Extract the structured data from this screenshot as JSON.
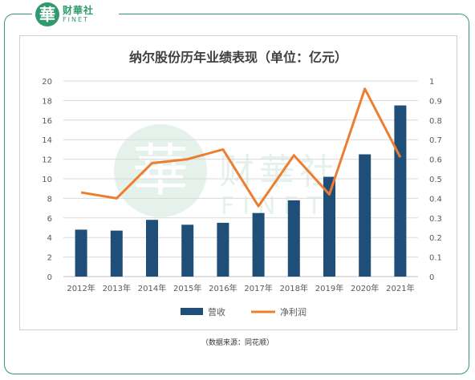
{
  "brand": {
    "mark": "華",
    "name_cn": "财華社",
    "name_en": "FINET"
  },
  "source": "（数据来源：同花顺）",
  "colors": {
    "bar": "#1f4e79",
    "line": "#ed7d31",
    "brand": "#2f9a6d",
    "grid": "#d9d9d9"
  },
  "chart_data": {
    "type": "bar",
    "title": "纳尔股份历年业绩表现（单位：亿元）",
    "categories": [
      "2012年",
      "2013年",
      "2014年",
      "2015年",
      "2016年",
      "2017年",
      "2018年",
      "2019年",
      "2020年",
      "2021年"
    ],
    "series": [
      {
        "name": "营收",
        "type": "bar",
        "axis": "left",
        "values": [
          4.8,
          4.7,
          5.8,
          5.3,
          5.5,
          6.5,
          7.8,
          10.2,
          12.5,
          17.5
        ]
      },
      {
        "name": "净利润",
        "type": "line",
        "axis": "right",
        "values": [
          0.43,
          0.4,
          0.58,
          0.6,
          0.65,
          0.36,
          0.62,
          0.42,
          0.96,
          0.61
        ]
      }
    ],
    "ylim_left": [
      0,
      20
    ],
    "yticks_left": [
      "0",
      "2",
      "4",
      "6",
      "8",
      "10",
      "12",
      "14",
      "16",
      "18",
      "20"
    ],
    "ylim_right": [
      0,
      1
    ],
    "yticks_right": [
      "0",
      "0.1",
      "0.2",
      "0.3",
      "0.4",
      "0.5",
      "0.6",
      "0.7",
      "0.8",
      "0.9",
      "1"
    ],
    "grid": true,
    "legend_position": "bottom"
  }
}
